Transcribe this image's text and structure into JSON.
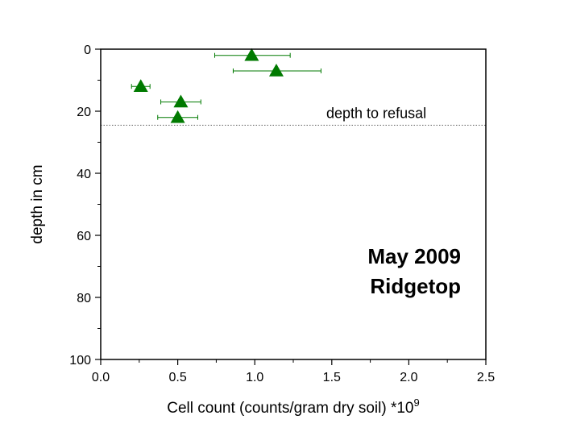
{
  "chart_data": {
    "type": "scatter",
    "xlabel": "Cell count (counts/gram dry soil) *10",
    "xlabel_superscript": "9",
    "ylabel": "depth in cm",
    "xlim": [
      0.0,
      2.5
    ],
    "ylim": [
      0,
      100
    ],
    "y_inverted": true,
    "x_ticks": [
      "0.0",
      "0.5",
      "1.0",
      "1.5",
      "2.0",
      "2.5"
    ],
    "y_ticks": [
      "0",
      "20",
      "40",
      "60",
      "80",
      "100"
    ],
    "grid": false,
    "marker": "triangle",
    "color": "#007a00",
    "points": [
      {
        "x": 0.98,
        "y": 2,
        "xerr_low": 0.74,
        "xerr_high": 1.23
      },
      {
        "x": 1.14,
        "y": 7,
        "xerr_low": 0.86,
        "xerr_high": 1.43
      },
      {
        "x": 0.26,
        "y": 12,
        "xerr_low": 0.2,
        "xerr_high": 0.32
      },
      {
        "x": 0.52,
        "y": 17,
        "xerr_low": 0.39,
        "xerr_high": 0.65
      },
      {
        "x": 0.5,
        "y": 22,
        "xerr_low": 0.37,
        "xerr_high": 0.63
      }
    ],
    "reference_line": {
      "y": 24.5,
      "label": "depth to refusal",
      "style": "dotted"
    },
    "annotation": {
      "line1": "May 2009",
      "line2": "Ridgetop"
    }
  }
}
